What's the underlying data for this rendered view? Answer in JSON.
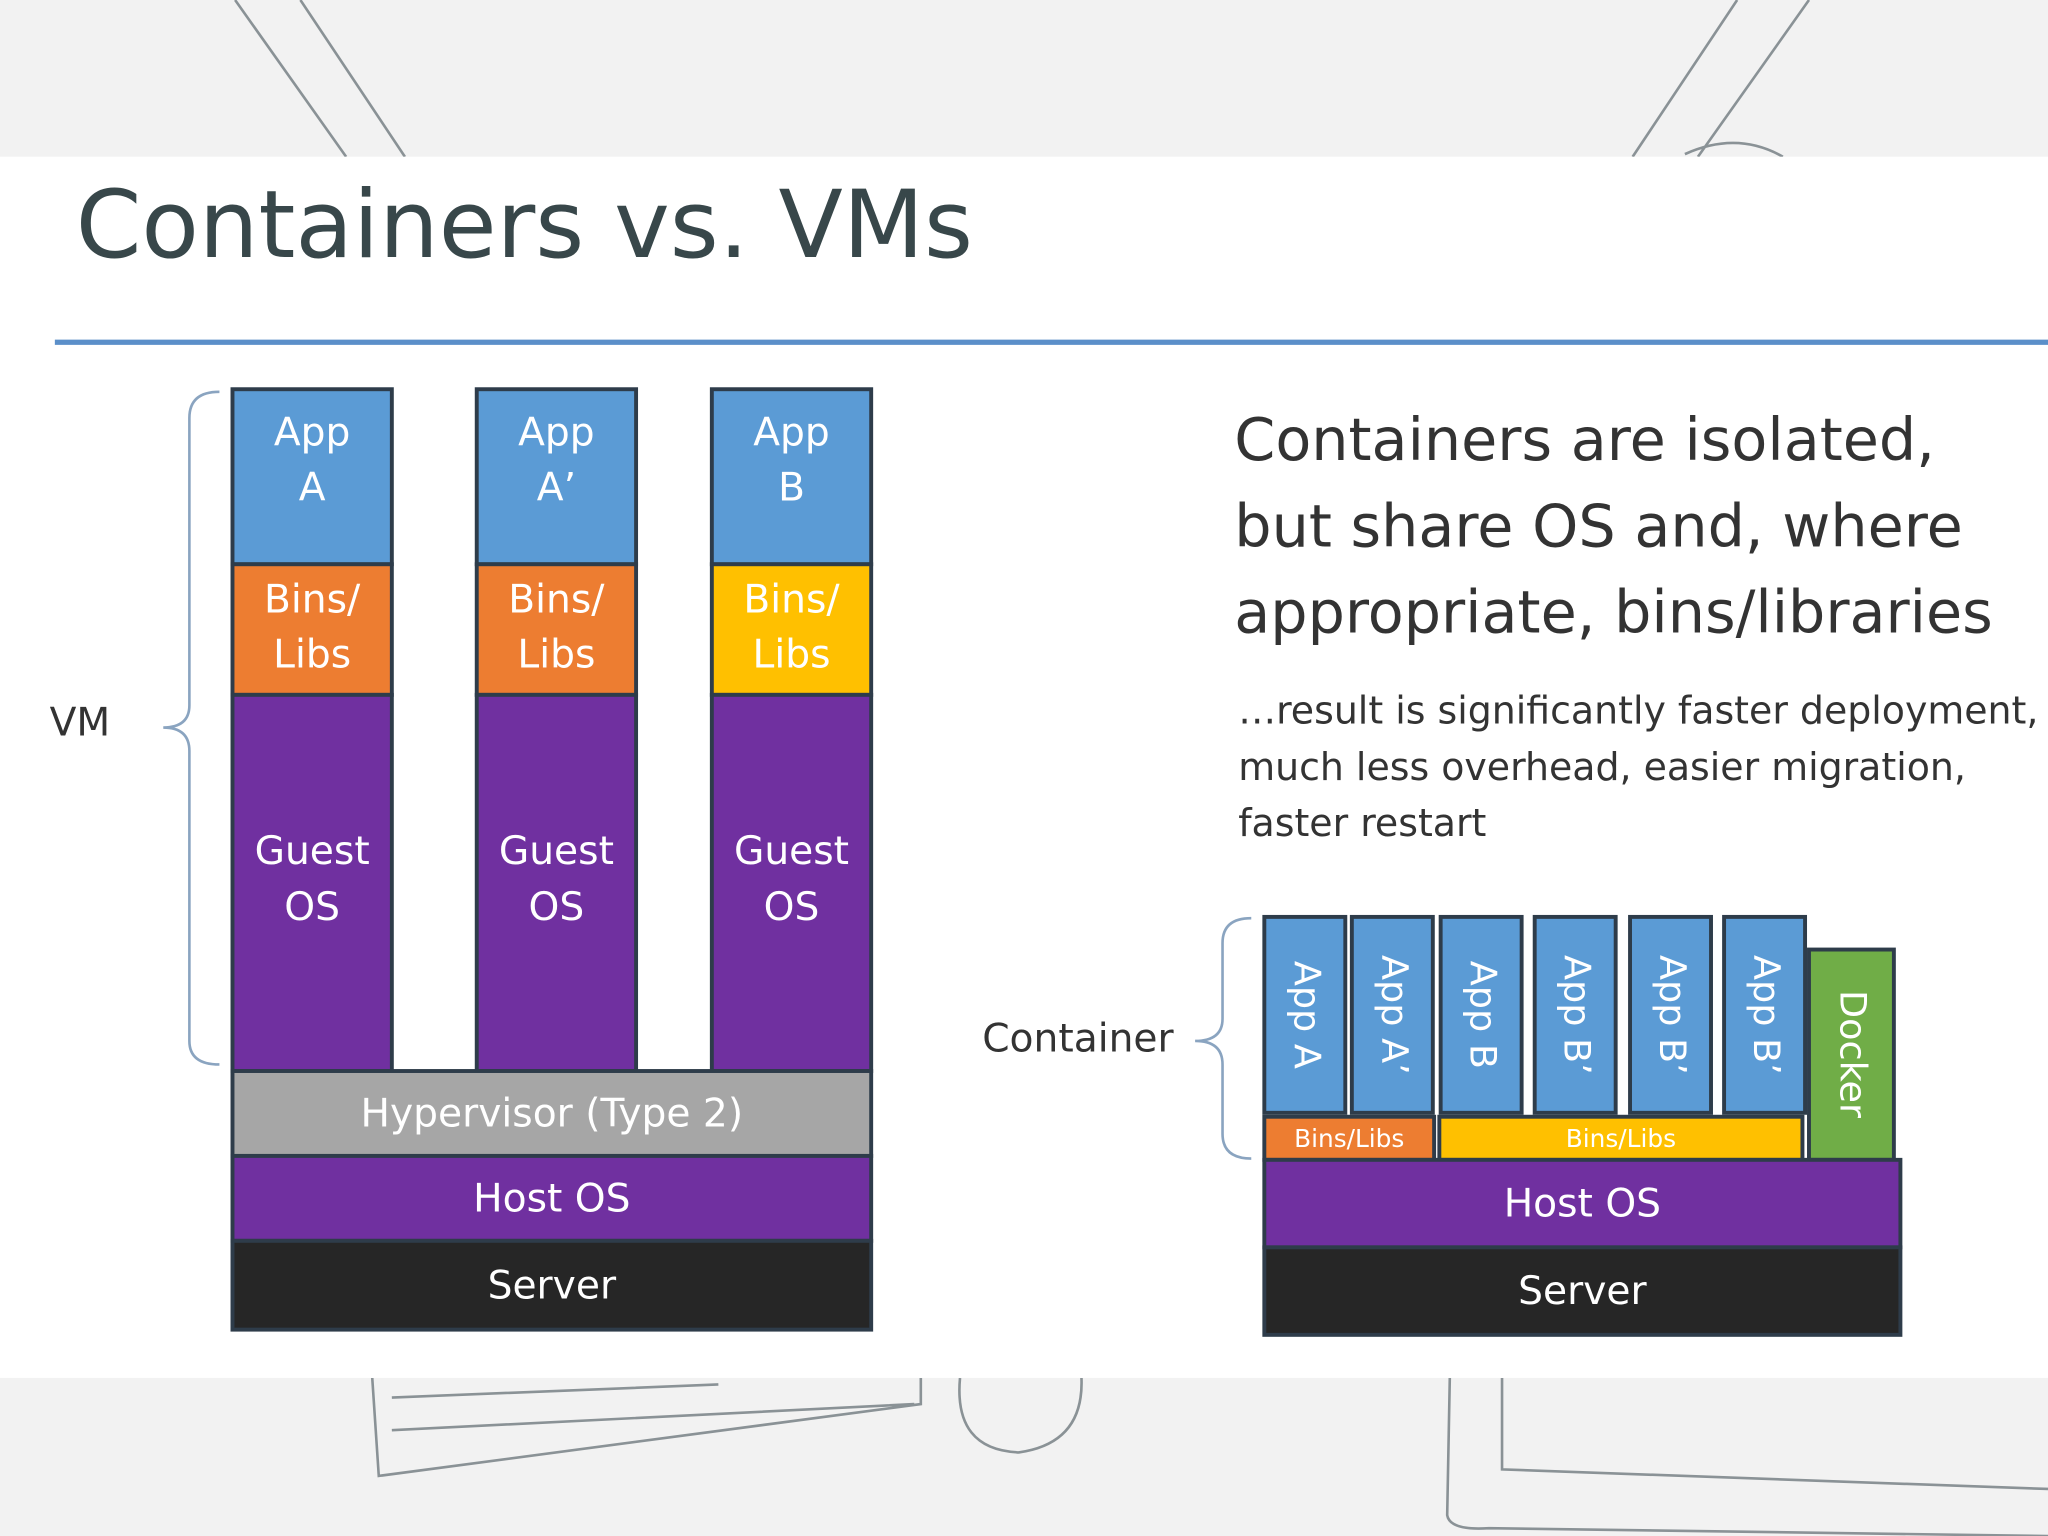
{
  "title": "Containers vs. VMs",
  "vm": {
    "label": "VM",
    "columns": [
      {
        "app": [
          "App",
          "A"
        ],
        "bins": [
          "Bins/",
          "Libs"
        ],
        "guest": [
          "Guest",
          "OS"
        ]
      },
      {
        "app": [
          "App",
          "A’"
        ],
        "bins": [
          "Bins/",
          "Libs"
        ],
        "guest": [
          "Guest",
          "OS"
        ]
      },
      {
        "app": [
          "App",
          "B"
        ],
        "bins": [
          "Bins/",
          "Libs"
        ],
        "guest": [
          "Guest",
          "OS"
        ]
      }
    ],
    "hypervisor": "Hypervisor (Type 2)",
    "host_os": "Host OS",
    "server": "Server"
  },
  "description": {
    "heading": [
      "Containers are isolated,",
      "but share OS and, where",
      "appropriate, bins/libraries"
    ],
    "detail": [
      "…result is significantly faster deployment,",
      "much less overhead, easier migration,",
      "faster restart"
    ]
  },
  "containers": {
    "label": "Container",
    "apps": [
      "App A",
      "App A’",
      "App B",
      "App B’",
      "App B’",
      "App B’"
    ],
    "bins": [
      "Bins/Libs",
      "Bins/Libs"
    ],
    "docker": "Docker",
    "host_os": "Host OS",
    "server": "Server"
  }
}
